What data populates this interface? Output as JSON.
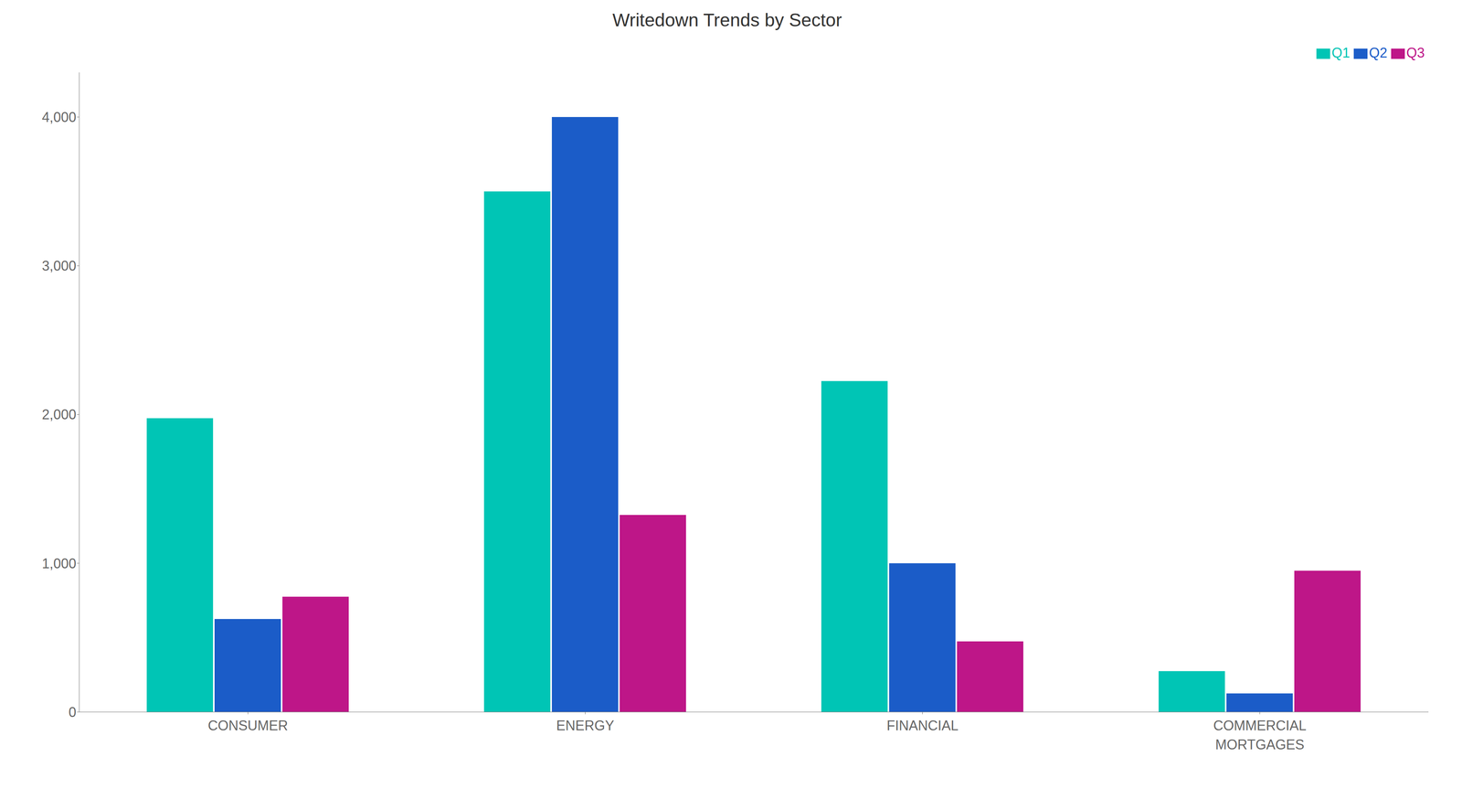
{
  "chart_data": {
    "type": "bar",
    "title": "Writedown Trends by Sector",
    "categories": [
      "CONSUMER",
      "ENERGY",
      "FINANCIAL",
      "COMMERCIAL\nMORTGAGES"
    ],
    "series": [
      {
        "name": "Q1",
        "color": "#00C5B5",
        "values": [
          1975,
          3500,
          2225,
          275
        ]
      },
      {
        "name": "Q2",
        "color": "#1B5CC8",
        "values": [
          625,
          4000,
          1000,
          125
        ]
      },
      {
        "name": "Q3",
        "color": "#BE1688",
        "values": [
          775,
          1325,
          475,
          950
        ]
      }
    ],
    "ylim": [
      0,
      4300
    ],
    "yticks": [
      0,
      {
        "value": 1000,
        "label": "1,000"
      },
      {
        "value": 2000,
        "label": "2,000"
      },
      {
        "value": 3000,
        "label": "3,000"
      },
      {
        "value": 4000,
        "label": "4,000"
      }
    ],
    "grid": false,
    "legend": "upper right"
  }
}
